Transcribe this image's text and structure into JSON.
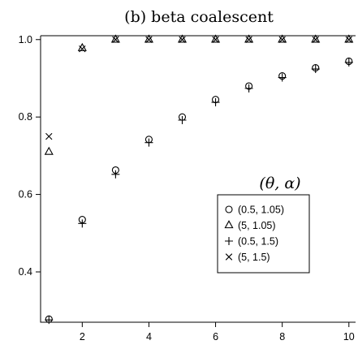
{
  "chart_data": {
    "type": "scatter",
    "title": "(b) beta coalescent",
    "xlabel": "",
    "ylabel": "",
    "xlim": [
      0.75,
      10.2
    ],
    "ylim": [
      0.27,
      1.01
    ],
    "xticks": [
      2,
      4,
      6,
      8,
      10
    ],
    "yticks": [
      0.4,
      0.6,
      0.8,
      1.0
    ],
    "ytick_labels": [
      "0.4",
      "0.6",
      "0.8",
      "1.0"
    ],
    "grid": false,
    "legend": {
      "title": "(θ, α)",
      "position": "right",
      "entries": [
        "(0.5, 1.05)",
        "(5, 1.05)",
        "(0.5, 1.5)",
        "(5, 1.5)"
      ]
    },
    "x": [
      1,
      2,
      3,
      4,
      5,
      6,
      7,
      8,
      9,
      10
    ],
    "series": [
      {
        "name": "(0.5, 1.05)",
        "marker": "circle",
        "values": [
          0.278,
          0.535,
          0.663,
          0.742,
          0.8,
          0.845,
          0.88,
          0.906,
          0.927,
          0.944
        ]
      },
      {
        "name": "(5, 1.05)",
        "marker": "triangle",
        "values": [
          0.71,
          0.978,
          1.0,
          1.0,
          1.0,
          1.0,
          1.0,
          1.0,
          1.0,
          1.0
        ]
      },
      {
        "name": "(0.5, 1.5)",
        "marker": "plus",
        "values": [
          0.276,
          0.525,
          0.652,
          0.734,
          0.792,
          0.838,
          0.874,
          0.902,
          0.924,
          0.941
        ]
      },
      {
        "name": "(5, 1.5)",
        "marker": "cross",
        "values": [
          0.75,
          0.976,
          1.0,
          1.0,
          1.0,
          1.0,
          1.0,
          1.0,
          1.0,
          1.0
        ]
      }
    ]
  }
}
